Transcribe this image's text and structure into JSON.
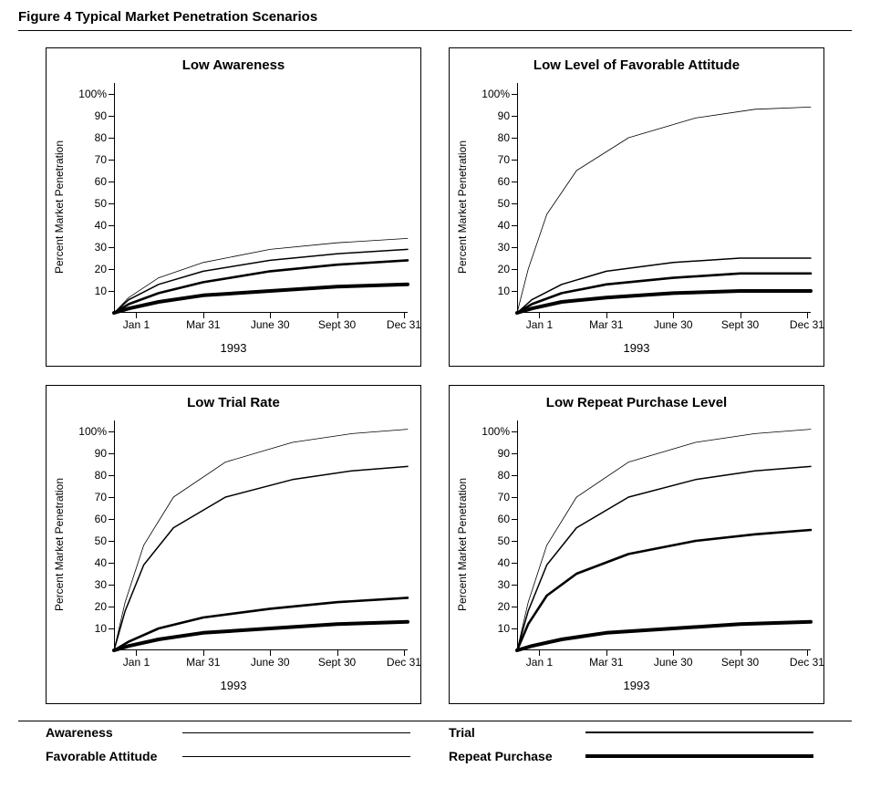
{
  "figure_title": "Figure 4   Typical Market Penetration Scenarios",
  "axis": {
    "ylabel": "Percent Market Penetration",
    "xlabel": "1993",
    "ylim": [
      0,
      105
    ],
    "yticks": [
      10,
      20,
      30,
      40,
      50,
      60,
      70,
      80,
      90,
      100
    ],
    "ytick_labels": [
      "10",
      "20",
      "30",
      "40",
      "50",
      "60",
      "70",
      "80",
      "90",
      "100%"
    ],
    "xlim": [
      0,
      395
    ],
    "xticks": [
      30,
      120,
      210,
      300,
      390
    ],
    "xtick_labels": [
      "Jan 1",
      "Mar 31",
      "June 30",
      "Sept 30",
      "Dec 31"
    ],
    "label_fontsize": 12
  },
  "series_styles": {
    "awareness": {
      "stroke": "#000000",
      "width": 0.8
    },
    "favorable": {
      "stroke": "#000000",
      "width": 1.5
    },
    "trial": {
      "stroke": "#000000",
      "width": 2.6
    },
    "repeat": {
      "stroke": "#000000",
      "width": 4.0
    }
  },
  "panels": [
    {
      "title": "Low Awareness",
      "series": {
        "awareness": [
          [
            0,
            0
          ],
          [
            20,
            7
          ],
          [
            60,
            16
          ],
          [
            120,
            23
          ],
          [
            210,
            29
          ],
          [
            300,
            32
          ],
          [
            395,
            34
          ]
        ],
        "favorable": [
          [
            0,
            0
          ],
          [
            20,
            6
          ],
          [
            60,
            13
          ],
          [
            120,
            19
          ],
          [
            210,
            24
          ],
          [
            300,
            27
          ],
          [
            395,
            29
          ]
        ],
        "trial": [
          [
            0,
            0
          ],
          [
            20,
            4
          ],
          [
            60,
            9
          ],
          [
            120,
            14
          ],
          [
            210,
            19
          ],
          [
            300,
            22
          ],
          [
            395,
            24
          ]
        ],
        "repeat": [
          [
            0,
            0
          ],
          [
            20,
            2
          ],
          [
            60,
            5
          ],
          [
            120,
            8
          ],
          [
            210,
            10
          ],
          [
            300,
            12
          ],
          [
            395,
            13
          ]
        ]
      }
    },
    {
      "title": "Low Level of Favorable Attitude",
      "series": {
        "awareness": [
          [
            0,
            0
          ],
          [
            15,
            20
          ],
          [
            40,
            45
          ],
          [
            80,
            65
          ],
          [
            150,
            80
          ],
          [
            240,
            89
          ],
          [
            320,
            93
          ],
          [
            395,
            94
          ]
        ],
        "favorable": [
          [
            0,
            0
          ],
          [
            20,
            6
          ],
          [
            60,
            13
          ],
          [
            120,
            19
          ],
          [
            210,
            23
          ],
          [
            300,
            25
          ],
          [
            395,
            25
          ]
        ],
        "trial": [
          [
            0,
            0
          ],
          [
            20,
            4
          ],
          [
            60,
            9
          ],
          [
            120,
            13
          ],
          [
            210,
            16
          ],
          [
            300,
            18
          ],
          [
            395,
            18
          ]
        ],
        "repeat": [
          [
            0,
            0
          ],
          [
            20,
            2
          ],
          [
            60,
            5
          ],
          [
            120,
            7
          ],
          [
            210,
            9
          ],
          [
            300,
            10
          ],
          [
            395,
            10
          ]
        ]
      }
    },
    {
      "title": "Low Trial Rate",
      "series": {
        "awareness": [
          [
            0,
            0
          ],
          [
            15,
            22
          ],
          [
            40,
            48
          ],
          [
            80,
            70
          ],
          [
            150,
            86
          ],
          [
            240,
            95
          ],
          [
            320,
            99
          ],
          [
            395,
            101
          ]
        ],
        "favorable": [
          [
            0,
            0
          ],
          [
            15,
            18
          ],
          [
            40,
            39
          ],
          [
            80,
            56
          ],
          [
            150,
            70
          ],
          [
            240,
            78
          ],
          [
            320,
            82
          ],
          [
            395,
            84
          ]
        ],
        "trial": [
          [
            0,
            0
          ],
          [
            20,
            4
          ],
          [
            60,
            10
          ],
          [
            120,
            15
          ],
          [
            210,
            19
          ],
          [
            300,
            22
          ],
          [
            395,
            24
          ]
        ],
        "repeat": [
          [
            0,
            0
          ],
          [
            20,
            2
          ],
          [
            60,
            5
          ],
          [
            120,
            8
          ],
          [
            210,
            10
          ],
          [
            300,
            12
          ],
          [
            395,
            13
          ]
        ]
      }
    },
    {
      "title": "Low Repeat Purchase Level",
      "series": {
        "awareness": [
          [
            0,
            0
          ],
          [
            15,
            22
          ],
          [
            40,
            48
          ],
          [
            80,
            70
          ],
          [
            150,
            86
          ],
          [
            240,
            95
          ],
          [
            320,
            99
          ],
          [
            395,
            101
          ]
        ],
        "favorable": [
          [
            0,
            0
          ],
          [
            15,
            18
          ],
          [
            40,
            39
          ],
          [
            80,
            56
          ],
          [
            150,
            70
          ],
          [
            240,
            78
          ],
          [
            320,
            82
          ],
          [
            395,
            84
          ]
        ],
        "trial": [
          [
            0,
            0
          ],
          [
            15,
            12
          ],
          [
            40,
            25
          ],
          [
            80,
            35
          ],
          [
            150,
            44
          ],
          [
            240,
            50
          ],
          [
            320,
            53
          ],
          [
            395,
            55
          ]
        ],
        "repeat": [
          [
            0,
            0
          ],
          [
            20,
            2
          ],
          [
            60,
            5
          ],
          [
            120,
            8
          ],
          [
            210,
            10
          ],
          [
            300,
            12
          ],
          [
            395,
            13
          ]
        ]
      }
    }
  ],
  "legend": [
    {
      "label": "Awareness",
      "style": "awareness"
    },
    {
      "label": "Trial",
      "style": "trial"
    },
    {
      "label": "Favorable Attitude",
      "style": "favorable"
    },
    {
      "label": "Repeat Purchase",
      "style": "repeat"
    }
  ],
  "colors": {
    "line": "#000000",
    "background": "#ffffff",
    "border": "#000000"
  }
}
